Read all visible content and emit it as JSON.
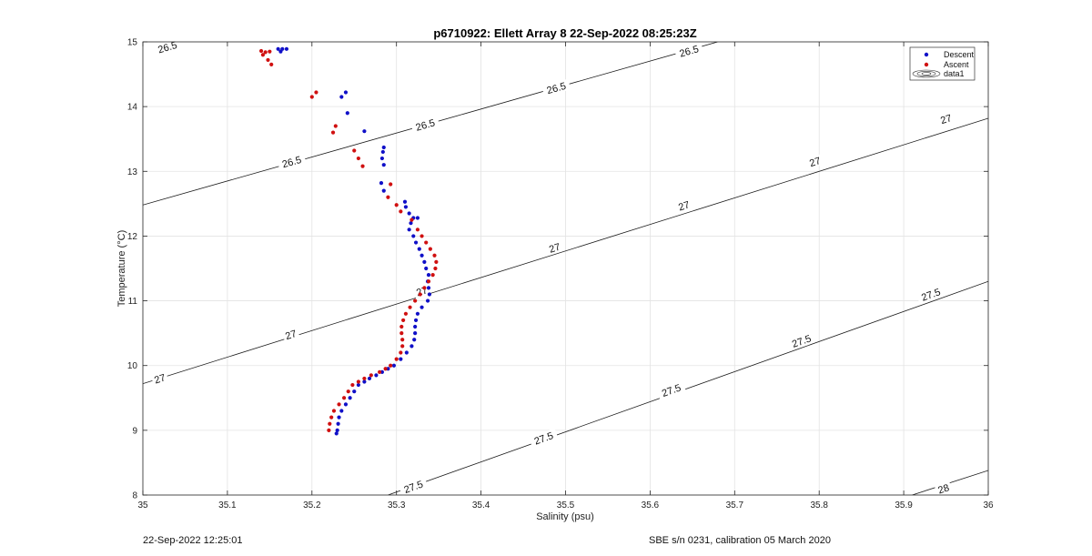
{
  "footer": {
    "timestamp": "22-Sep-2022 12:25:01",
    "instrument": "SBE s/n 0231, calibration 05 March 2020"
  },
  "chart_data": {
    "type": "scatter",
    "title": "p6710922: Ellett Array 8 22-Sep-2022 08:25:23Z",
    "xlabel": "Salinity (psu)",
    "ylabel": "Temperature (°C)",
    "xlim": [
      35,
      36
    ],
    "ylim": [
      8,
      15
    ],
    "xticks": [
      35,
      35.1,
      35.2,
      35.3,
      35.4,
      35.5,
      35.6,
      35.7,
      35.8,
      35.9,
      36
    ],
    "xtick_labels": [
      "35",
      "35.1",
      "35.2",
      "35.3",
      "35.4",
      "35.5",
      "35.6",
      "35.7",
      "35.8",
      "35.9",
      "36"
    ],
    "yticks": [
      8,
      9,
      10,
      11,
      12,
      13,
      14,
      15
    ],
    "ytick_labels": [
      "8",
      "9",
      "10",
      "11",
      "12",
      "13",
      "14",
      "15"
    ],
    "grid": true,
    "legend": {
      "placement": "top-right",
      "entries": [
        "Descent",
        "Ascent",
        "data1"
      ]
    },
    "colors": {
      "descent": "#1010c8",
      "ascent": "#d01010",
      "contour": "#1a1a1a"
    },
    "series": [
      {
        "name": "Descent",
        "points": [
          [
            35.16,
            14.89
          ],
          [
            35.165,
            14.89
          ],
          [
            35.17,
            14.89
          ],
          [
            35.163,
            14.85
          ],
          [
            35.24,
            14.22
          ],
          [
            35.235,
            14.15
          ],
          [
            35.242,
            13.9
          ],
          [
            35.262,
            13.62
          ],
          [
            35.285,
            13.37
          ],
          [
            35.284,
            13.3
          ],
          [
            35.283,
            13.2
          ],
          [
            35.285,
            13.1
          ],
          [
            35.282,
            12.82
          ],
          [
            35.285,
            12.7
          ],
          [
            35.31,
            12.53
          ],
          [
            35.311,
            12.45
          ],
          [
            35.315,
            12.35
          ],
          [
            35.32,
            12.28
          ],
          [
            35.325,
            12.28
          ],
          [
            35.317,
            12.2
          ],
          [
            35.315,
            12.1
          ],
          [
            35.32,
            12.0
          ],
          [
            35.323,
            11.9
          ],
          [
            35.327,
            11.8
          ],
          [
            35.33,
            11.7
          ],
          [
            35.333,
            11.6
          ],
          [
            35.335,
            11.5
          ],
          [
            35.338,
            11.4
          ],
          [
            35.337,
            11.3
          ],
          [
            35.338,
            11.2
          ],
          [
            35.339,
            11.1
          ],
          [
            35.337,
            11.0
          ],
          [
            35.33,
            10.9
          ],
          [
            35.325,
            10.8
          ],
          [
            35.323,
            10.7
          ],
          [
            35.322,
            10.6
          ],
          [
            35.322,
            10.5
          ],
          [
            35.321,
            10.4
          ],
          [
            35.318,
            10.3
          ],
          [
            35.312,
            10.2
          ],
          [
            35.305,
            10.1
          ],
          [
            35.297,
            10.0
          ],
          [
            35.29,
            9.95
          ],
          [
            35.283,
            9.9
          ],
          [
            35.276,
            9.85
          ],
          [
            35.268,
            9.8
          ],
          [
            35.262,
            9.75
          ],
          [
            35.255,
            9.7
          ],
          [
            35.25,
            9.6
          ],
          [
            35.245,
            9.5
          ],
          [
            35.24,
            9.4
          ],
          [
            35.235,
            9.3
          ],
          [
            35.232,
            9.2
          ],
          [
            35.231,
            9.1
          ],
          [
            35.23,
            9.0
          ],
          [
            35.229,
            8.95
          ]
        ]
      },
      {
        "name": "Ascent",
        "points": [
          [
            35.14,
            14.86
          ],
          [
            35.145,
            14.84
          ],
          [
            35.15,
            14.85
          ],
          [
            35.142,
            14.8
          ],
          [
            35.148,
            14.72
          ],
          [
            35.152,
            14.65
          ],
          [
            35.205,
            14.22
          ],
          [
            35.2,
            14.15
          ],
          [
            35.228,
            13.7
          ],
          [
            35.225,
            13.6
          ],
          [
            35.25,
            13.32
          ],
          [
            35.255,
            13.2
          ],
          [
            35.26,
            13.08
          ],
          [
            35.293,
            12.8
          ],
          [
            35.29,
            12.6
          ],
          [
            35.3,
            12.48
          ],
          [
            35.305,
            12.38
          ],
          [
            35.318,
            12.25
          ],
          [
            35.325,
            12.1
          ],
          [
            35.33,
            12.0
          ],
          [
            35.335,
            11.9
          ],
          [
            35.34,
            11.8
          ],
          [
            35.345,
            11.7
          ],
          [
            35.347,
            11.6
          ],
          [
            35.346,
            11.5
          ],
          [
            35.343,
            11.4
          ],
          [
            35.338,
            11.3
          ],
          [
            35.333,
            11.2
          ],
          [
            35.328,
            11.1
          ],
          [
            35.322,
            11.0
          ],
          [
            35.316,
            10.9
          ],
          [
            35.311,
            10.8
          ],
          [
            35.308,
            10.7
          ],
          [
            35.306,
            10.6
          ],
          [
            35.306,
            10.5
          ],
          [
            35.307,
            10.4
          ],
          [
            35.307,
            10.3
          ],
          [
            35.305,
            10.2
          ],
          [
            35.3,
            10.1
          ],
          [
            35.293,
            10.0
          ],
          [
            35.287,
            9.95
          ],
          [
            35.28,
            9.9
          ],
          [
            35.27,
            9.85
          ],
          [
            35.262,
            9.8
          ],
          [
            35.255,
            9.75
          ],
          [
            35.248,
            9.7
          ],
          [
            35.243,
            9.6
          ],
          [
            35.238,
            9.5
          ],
          [
            35.232,
            9.4
          ],
          [
            35.226,
            9.3
          ],
          [
            35.223,
            9.2
          ],
          [
            35.221,
            9.1
          ],
          [
            35.22,
            9.0
          ]
        ]
      }
    ],
    "contours": [
      {
        "level": "26.5",
        "points": [
          [
            35.0,
            12.48
          ],
          [
            35.68,
            15.0
          ]
        ]
      },
      {
        "level": "27",
        "points": [
          [
            35.0,
            9.72
          ],
          [
            36.0,
            13.82
          ]
        ]
      },
      {
        "level": "27.5",
        "points": [
          [
            35.29,
            8.0
          ],
          [
            36.0,
            11.3
          ]
        ]
      },
      {
        "level": "28",
        "points": [
          [
            35.91,
            8.0
          ],
          [
            36.0,
            8.38
          ]
        ]
      }
    ],
    "contour_labels": [
      {
        "text": "26.5",
        "x": 35.029,
        "y": 14.92
      },
      {
        "text": "26.5",
        "x": 35.176,
        "y": 13.15
      },
      {
        "text": "26.5",
        "x": 35.334,
        "y": 13.72
      },
      {
        "text": "26.5",
        "x": 35.489,
        "y": 14.29
      },
      {
        "text": "26.5",
        "x": 35.646,
        "y": 14.86
      },
      {
        "text": "27",
        "x": 35.02,
        "y": 9.8
      },
      {
        "text": "27",
        "x": 35.175,
        "y": 10.48
      },
      {
        "text": "27",
        "x": 35.33,
        "y": 11.15
      },
      {
        "text": "27",
        "x": 35.487,
        "y": 11.82
      },
      {
        "text": "27",
        "x": 35.64,
        "y": 12.47
      },
      {
        "text": "27",
        "x": 35.795,
        "y": 13.15
      },
      {
        "text": "27",
        "x": 35.95,
        "y": 13.81
      },
      {
        "text": "27.5",
        "x": 35.32,
        "y": 8.13
      },
      {
        "text": "27.5",
        "x": 35.474,
        "y": 8.88
      },
      {
        "text": "27.5",
        "x": 35.625,
        "y": 9.62
      },
      {
        "text": "27.5",
        "x": 35.779,
        "y": 10.38
      },
      {
        "text": "27.5",
        "x": 35.932,
        "y": 11.1
      },
      {
        "text": "28",
        "x": 35.947,
        "y": 8.1
      }
    ]
  }
}
